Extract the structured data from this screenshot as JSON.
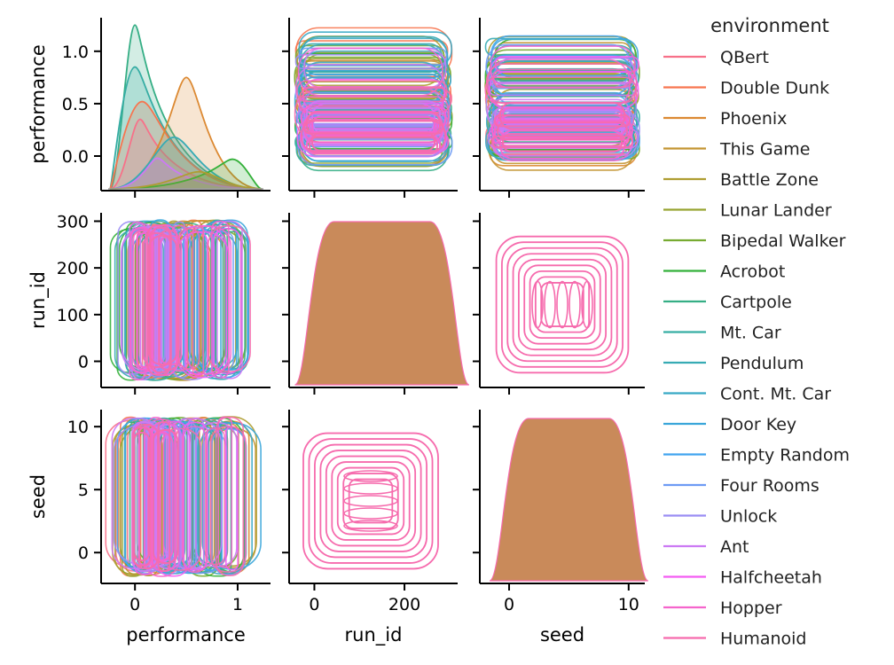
{
  "chart_data": {
    "type": "pairplot",
    "variables": [
      "performance",
      "run_id",
      "seed"
    ],
    "legend": {
      "title": "environment",
      "placement": "right",
      "entries": [
        {
          "name": "QBert",
          "color": "#f77189"
        },
        {
          "name": "Double Dunk",
          "color": "#f7754f"
        },
        {
          "name": "Phoenix",
          "color": "#dc8932"
        },
        {
          "name": "This Game",
          "color": "#c39532"
        },
        {
          "name": "Battle Zone",
          "color": "#ae9d31"
        },
        {
          "name": "Lunar Lander",
          "color": "#97a431"
        },
        {
          "name": "Bipedal Walker",
          "color": "#77ab31"
        },
        {
          "name": "Acrobot",
          "color": "#33b039"
        },
        {
          "name": "Cartpole",
          "color": "#35ae85"
        },
        {
          "name": "Mt. Car",
          "color": "#36ada4"
        },
        {
          "name": "Pendulum",
          "color": "#37abb4"
        },
        {
          "name": "Cont. Mt. Car",
          "color": "#38a9c5"
        },
        {
          "name": "Door Key",
          "color": "#3aa6da"
        },
        {
          "name": "Empty Random",
          "color": "#41a4ef"
        },
        {
          "name": "Four Rooms",
          "color": "#6e9bf4"
        },
        {
          "name": "Unlock",
          "color": "#9b8ef4"
        },
        {
          "name": "Ant",
          "color": "#cc7af4"
        },
        {
          "name": "Halfcheetah",
          "color": "#f45cf2"
        },
        {
          "name": "Hopper",
          "color": "#f565cc"
        },
        {
          "name": "Humanoid",
          "color": "#f66bad"
        }
      ]
    },
    "axes": {
      "performance": {
        "label": "performance",
        "range": [
          -0.33,
          1.32
        ],
        "ticks": [
          0,
          1
        ],
        "tick_labels": [
          "0",
          "1"
        ]
      },
      "run_id": {
        "label": "run_id",
        "range": [
          -56,
          318
        ],
        "ticks": [
          0,
          200
        ],
        "tick_labels": [
          "0",
          "200"
        ]
      },
      "seed": {
        "label": "seed",
        "range": [
          -2.45,
          11.35
        ],
        "ticks": [
          0,
          10
        ],
        "tick_labels": [
          "0",
          "10"
        ]
      }
    },
    "y_axes": {
      "performance": {
        "range": [
          -0.33,
          1.32
        ],
        "ticks": [
          0.0,
          0.5,
          1.0
        ],
        "tick_labels": [
          "0.0",
          "0.5",
          "1.0"
        ]
      },
      "run_id": {
        "range": [
          -56,
          318
        ],
        "ticks": [
          0,
          100,
          200,
          300
        ],
        "tick_labels": [
          "0",
          "100",
          "200",
          "300"
        ]
      },
      "seed": {
        "range": [
          -2.45,
          11.35
        ],
        "ticks": [
          0,
          5,
          10
        ],
        "tick_labels": [
          "0",
          "5",
          "10"
        ]
      }
    },
    "diag": {
      "run_id": {
        "range": [
          0,
          300
        ],
        "color": "#c98a5a"
      },
      "seed": {
        "range": [
          0,
          10
        ],
        "color": "#c98a5a"
      }
    },
    "kde_peaks": [
      {
        "environment": "Cartpole",
        "x": 0.0,
        "peak": 1.25
      },
      {
        "environment": "Mt. Car",
        "x": 0.0,
        "peak": 0.85
      },
      {
        "environment": "Double Dunk",
        "x": 0.07,
        "peak": 0.52
      },
      {
        "environment": "QBert",
        "x": 0.05,
        "peak": 0.35
      },
      {
        "environment": "Phoenix",
        "x": 0.5,
        "peak": 0.75
      },
      {
        "environment": "Pendulum",
        "x": 0.38,
        "peak": 0.18
      },
      {
        "environment": "Ant",
        "x": 0.22,
        "peak": -0.02
      },
      {
        "environment": "Acrobot",
        "x": 0.95,
        "peak": -0.03
      },
      {
        "environment": "Battle Zone",
        "x": 0.62,
        "peak": -0.15
      }
    ],
    "grid": false
  }
}
